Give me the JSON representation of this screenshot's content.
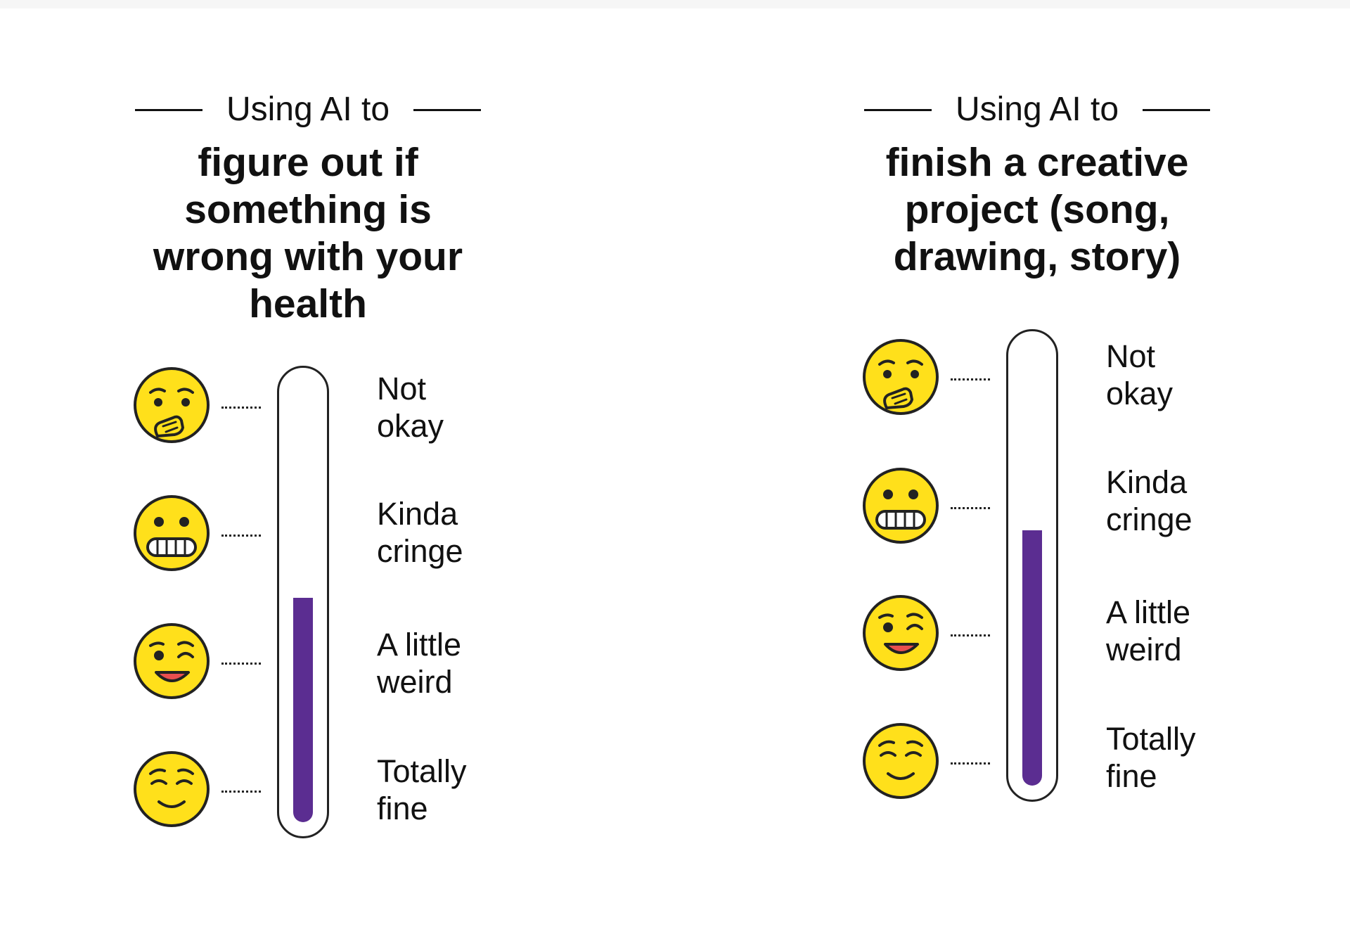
{
  "panels": [
    {
      "lead": "Using AI to",
      "headline": [
        "figure out if",
        "something is",
        "wrong with your",
        "health"
      ],
      "rating_fraction": 0.51,
      "rating_label": "Kinda cringe",
      "scale": [
        {
          "emoji": "hand-over-mouth-emoji-icon",
          "label": [
            "Not",
            "okay"
          ]
        },
        {
          "emoji": "grimacing-face-emoji-icon",
          "label": [
            "Kinda",
            "cringe"
          ]
        },
        {
          "emoji": "winking-face-emoji-icon",
          "label": [
            "A little",
            "weird"
          ]
        },
        {
          "emoji": "relieved-face-emoji-icon",
          "label": [
            "Totally",
            "fine"
          ]
        }
      ]
    },
    {
      "lead": "Using AI to",
      "headline": [
        "finish a creative",
        "project (song,",
        "drawing, story)"
      ],
      "rating_fraction": 0.58,
      "rating_label": "Kinda cringe",
      "scale": [
        {
          "emoji": "hand-over-mouth-emoji-icon",
          "label": [
            "Not",
            "okay"
          ]
        },
        {
          "emoji": "grimacing-face-emoji-icon",
          "label": [
            "Kinda",
            "cringe"
          ]
        },
        {
          "emoji": "winking-face-emoji-icon",
          "label": [
            "A little",
            "weird"
          ]
        },
        {
          "emoji": "relieved-face-emoji-icon",
          "label": [
            "Totally",
            "fine"
          ]
        }
      ]
    }
  ],
  "colors": {
    "fill": "#5b2d91",
    "emoji_face": "#ffe01b",
    "outline": "#222222",
    "blush": "#e94f4f"
  }
}
